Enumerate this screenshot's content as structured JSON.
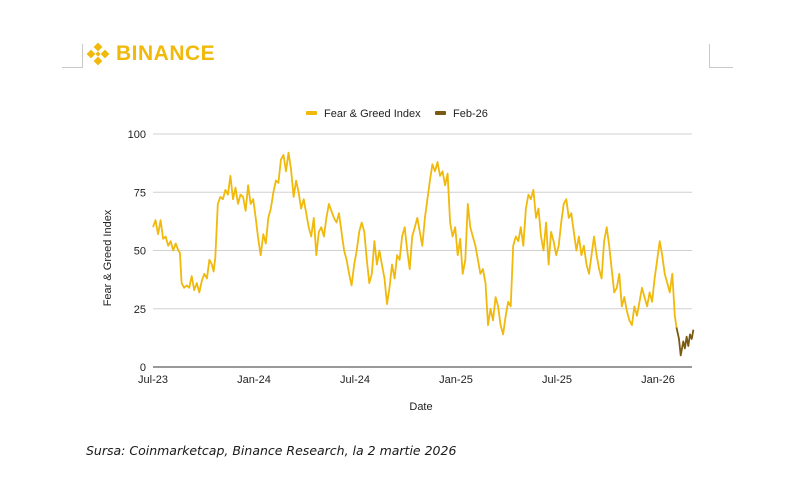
{
  "brand": {
    "name": "BINANCE",
    "color": "#F0B90B",
    "logo_icon": "binance-diamond-icon"
  },
  "source_note": "Sursa: Coinmarketcap, Binance Research, la 2 martie 2026",
  "chart_data": {
    "type": "line",
    "title": "",
    "xlabel": "Date",
    "ylabel": "Fear & Greed Index",
    "ylim": [
      0,
      100
    ],
    "yticks": [
      0,
      25,
      50,
      75,
      100
    ],
    "x_unit": "months since Jul-2023",
    "xlim": [
      0,
      32.1
    ],
    "xticks": [
      {
        "label": "Jul-23",
        "x": 0
      },
      {
        "label": "Jan-24",
        "x": 6
      },
      {
        "label": "Jul-24",
        "x": 12
      },
      {
        "label": "Jan-25",
        "x": 18
      },
      {
        "label": "Jul-25",
        "x": 24
      },
      {
        "label": "Jan-26",
        "x": 30
      }
    ],
    "grid": true,
    "legend": "top-center",
    "series": [
      {
        "name": "Fear & Greed Index",
        "color": "#F0B90B",
        "points": [
          [
            0.0,
            60
          ],
          [
            0.15,
            63
          ],
          [
            0.3,
            57
          ],
          [
            0.45,
            63
          ],
          [
            0.6,
            55
          ],
          [
            0.75,
            56
          ],
          [
            0.9,
            52
          ],
          [
            1.05,
            54
          ],
          [
            1.2,
            50
          ],
          [
            1.35,
            53
          ],
          [
            1.5,
            50
          ],
          [
            1.6,
            49
          ],
          [
            1.7,
            36
          ],
          [
            1.85,
            34
          ],
          [
            2.0,
            35
          ],
          [
            2.15,
            34
          ],
          [
            2.3,
            39
          ],
          [
            2.45,
            33
          ],
          [
            2.6,
            36
          ],
          [
            2.75,
            32
          ],
          [
            2.9,
            37
          ],
          [
            3.05,
            40
          ],
          [
            3.2,
            38
          ],
          [
            3.35,
            46
          ],
          [
            3.5,
            44
          ],
          [
            3.6,
            41
          ],
          [
            3.7,
            47
          ],
          [
            3.85,
            70
          ],
          [
            4.0,
            73
          ],
          [
            4.15,
            72
          ],
          [
            4.3,
            76
          ],
          [
            4.45,
            74
          ],
          [
            4.6,
            82
          ],
          [
            4.75,
            72
          ],
          [
            4.9,
            77
          ],
          [
            5.05,
            70
          ],
          [
            5.2,
            74
          ],
          [
            5.35,
            73
          ],
          [
            5.5,
            67
          ],
          [
            5.65,
            78
          ],
          [
            5.8,
            70
          ],
          [
            5.95,
            72
          ],
          [
            6.1,
            64
          ],
          [
            6.25,
            55
          ],
          [
            6.4,
            48
          ],
          [
            6.55,
            57
          ],
          [
            6.7,
            53
          ],
          [
            6.85,
            64
          ],
          [
            7.0,
            68
          ],
          [
            7.15,
            75
          ],
          [
            7.3,
            80
          ],
          [
            7.45,
            79
          ],
          [
            7.6,
            89
          ],
          [
            7.75,
            91
          ],
          [
            7.9,
            84
          ],
          [
            8.05,
            92
          ],
          [
            8.2,
            85
          ],
          [
            8.35,
            73
          ],
          [
            8.5,
            80
          ],
          [
            8.65,
            75
          ],
          [
            8.8,
            68
          ],
          [
            8.95,
            72
          ],
          [
            9.1,
            66
          ],
          [
            9.25,
            60
          ],
          [
            9.4,
            56
          ],
          [
            9.55,
            64
          ],
          [
            9.7,
            48
          ],
          [
            9.85,
            58
          ],
          [
            10.0,
            60
          ],
          [
            10.15,
            56
          ],
          [
            10.3,
            64
          ],
          [
            10.45,
            70
          ],
          [
            10.6,
            67
          ],
          [
            10.75,
            64
          ],
          [
            10.9,
            62
          ],
          [
            11.05,
            66
          ],
          [
            11.2,
            58
          ],
          [
            11.35,
            50
          ],
          [
            11.5,
            46
          ],
          [
            11.65,
            40
          ],
          [
            11.8,
            35
          ],
          [
            11.95,
            44
          ],
          [
            12.1,
            50
          ],
          [
            12.25,
            58
          ],
          [
            12.4,
            62
          ],
          [
            12.55,
            58
          ],
          [
            12.7,
            46
          ],
          [
            12.85,
            36
          ],
          [
            13.0,
            40
          ],
          [
            13.15,
            54
          ],
          [
            13.3,
            44
          ],
          [
            13.45,
            50
          ],
          [
            13.6,
            44
          ],
          [
            13.75,
            38
          ],
          [
            13.9,
            27
          ],
          [
            14.05,
            34
          ],
          [
            14.2,
            44
          ],
          [
            14.35,
            38
          ],
          [
            14.5,
            48
          ],
          [
            14.65,
            46
          ],
          [
            14.8,
            56
          ],
          [
            14.95,
            60
          ],
          [
            15.1,
            50
          ],
          [
            15.25,
            42
          ],
          [
            15.4,
            56
          ],
          [
            15.55,
            60
          ],
          [
            15.7,
            64
          ],
          [
            15.85,
            58
          ],
          [
            16.0,
            52
          ],
          [
            16.15,
            64
          ],
          [
            16.3,
            72
          ],
          [
            16.45,
            80
          ],
          [
            16.6,
            87
          ],
          [
            16.75,
            84
          ],
          [
            16.9,
            88
          ],
          [
            17.05,
            82
          ],
          [
            17.2,
            84
          ],
          [
            17.35,
            78
          ],
          [
            17.5,
            83
          ],
          [
            17.65,
            62
          ],
          [
            17.8,
            56
          ],
          [
            17.95,
            60
          ],
          [
            18.1,
            48
          ],
          [
            18.25,
            55
          ],
          [
            18.4,
            40
          ],
          [
            18.55,
            46
          ],
          [
            18.7,
            70
          ],
          [
            18.85,
            60
          ],
          [
            19.0,
            56
          ],
          [
            19.15,
            52
          ],
          [
            19.3,
            46
          ],
          [
            19.45,
            40
          ],
          [
            19.6,
            42
          ],
          [
            19.75,
            36
          ],
          [
            19.9,
            18
          ],
          [
            20.05,
            25
          ],
          [
            20.2,
            20
          ],
          [
            20.35,
            30
          ],
          [
            20.5,
            26
          ],
          [
            20.65,
            18
          ],
          [
            20.8,
            14
          ],
          [
            20.95,
            22
          ],
          [
            21.1,
            28
          ],
          [
            21.25,
            26
          ],
          [
            21.4,
            52
          ],
          [
            21.55,
            56
          ],
          [
            21.7,
            54
          ],
          [
            21.85,
            60
          ],
          [
            22.0,
            52
          ],
          [
            22.15,
            68
          ],
          [
            22.3,
            74
          ],
          [
            22.45,
            72
          ],
          [
            22.6,
            76
          ],
          [
            22.75,
            64
          ],
          [
            22.9,
            68
          ],
          [
            23.05,
            56
          ],
          [
            23.2,
            50
          ],
          [
            23.35,
            62
          ],
          [
            23.5,
            44
          ],
          [
            23.65,
            58
          ],
          [
            23.8,
            54
          ],
          [
            23.95,
            48
          ],
          [
            24.1,
            52
          ],
          [
            24.25,
            62
          ],
          [
            24.4,
            70
          ],
          [
            24.55,
            72
          ],
          [
            24.7,
            64
          ],
          [
            24.85,
            66
          ],
          [
            25.0,
            58
          ],
          [
            25.15,
            50
          ],
          [
            25.3,
            56
          ],
          [
            25.45,
            48
          ],
          [
            25.6,
            52
          ],
          [
            25.75,
            44
          ],
          [
            25.9,
            40
          ],
          [
            26.05,
            48
          ],
          [
            26.2,
            56
          ],
          [
            26.35,
            48
          ],
          [
            26.5,
            42
          ],
          [
            26.65,
            38
          ],
          [
            26.8,
            54
          ],
          [
            26.95,
            60
          ],
          [
            27.1,
            52
          ],
          [
            27.25,
            42
          ],
          [
            27.4,
            32
          ],
          [
            27.55,
            34
          ],
          [
            27.7,
            40
          ],
          [
            27.85,
            26
          ],
          [
            28.0,
            30
          ],
          [
            28.15,
            24
          ],
          [
            28.3,
            20
          ],
          [
            28.45,
            18
          ],
          [
            28.6,
            26
          ],
          [
            28.75,
            22
          ],
          [
            28.9,
            28
          ],
          [
            29.05,
            34
          ],
          [
            29.2,
            30
          ],
          [
            29.35,
            26
          ],
          [
            29.5,
            32
          ],
          [
            29.65,
            28
          ],
          [
            29.8,
            38
          ],
          [
            29.95,
            46
          ],
          [
            30.1,
            54
          ],
          [
            30.25,
            48
          ],
          [
            30.4,
            40
          ],
          [
            30.55,
            36
          ],
          [
            30.7,
            32
          ],
          [
            30.85,
            40
          ],
          [
            31.0,
            22
          ],
          [
            31.1,
            17
          ]
        ]
      },
      {
        "name": "Feb-26",
        "color": "#7A5A12",
        "points": [
          [
            31.1,
            17
          ],
          [
            31.25,
            12
          ],
          [
            31.35,
            5
          ],
          [
            31.5,
            11
          ],
          [
            31.6,
            8
          ],
          [
            31.7,
            13
          ],
          [
            31.8,
            9
          ],
          [
            31.9,
            14
          ],
          [
            32.0,
            12
          ],
          [
            32.1,
            16
          ]
        ]
      }
    ]
  }
}
